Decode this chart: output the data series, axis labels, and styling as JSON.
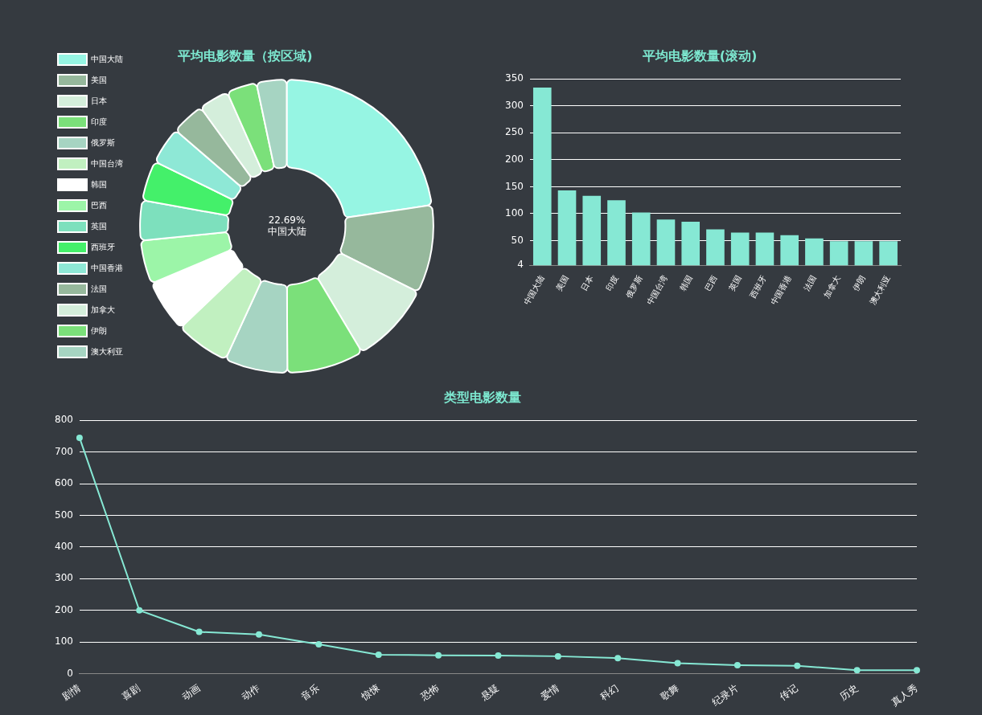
{
  "chart_data": [
    {
      "type": "donut",
      "title": "平均电影数量（按区域)",
      "legend": "left",
      "categories": [
        "中国大陆",
        "美国",
        "日本",
        "印度",
        "俄罗斯",
        "中国台湾",
        "韩国",
        "巴西",
        "英国",
        "西班牙",
        "中国香港",
        "法国",
        "加拿大",
        "伊朗",
        "澳大利亚"
      ],
      "values": [
        22.69,
        9.71,
        9.04,
        8.49,
        6.93,
        5.98,
        5.77,
        4.82,
        4.42,
        4.42,
        4.08,
        3.67,
        3.33,
        3.33,
        3.32
      ],
      "colors": [
        "#96f5e3",
        "#96b89c",
        "#d4eedb",
        "#7be07a",
        "#a6d4c2",
        "#c1f0c0",
        "#ffffff",
        "#9cf5a8",
        "#7de0bd",
        "#44f06a",
        "#8ee8d6",
        "#96b89c",
        "#d4eedb",
        "#7be07a",
        "#a6d4c2"
      ],
      "annotations": [
        "22.69%",
        "中国大陆"
      ]
    },
    {
      "type": "bar",
      "title": "平均电影数量(滚动)",
      "color": "#86e8d4",
      "grid": "y",
      "categories": [
        "中国大陆",
        "美国",
        "日本",
        "印度",
        "俄罗斯",
        "中国台湾",
        "韩国",
        "巴西",
        "英国",
        "西班牙",
        "中国香港",
        "法国",
        "加拿大",
        "伊朗",
        "澳大利亚"
      ],
      "values": [
        334,
        143,
        133,
        125,
        102,
        89,
        85,
        71,
        65,
        65,
        60,
        54,
        49,
        49,
        49
      ],
      "ylim": [
        4,
        350
      ],
      "yticks": [
        4,
        50,
        100,
        150,
        200,
        250,
        300,
        350
      ]
    },
    {
      "type": "line",
      "title": "类型电影数量",
      "color": "#86e8d4",
      "grid": "y",
      "marker": "circle",
      "categories": [
        "剧情",
        "喜剧",
        "动画",
        "动作",
        "音乐",
        "惊悚",
        "恐怖",
        "悬疑",
        "爱情",
        "科幻",
        "歌舞",
        "纪录片",
        "传记",
        "历史",
        "真人秀"
      ],
      "values": [
        745,
        200,
        132,
        124,
        93,
        60,
        58,
        57,
        55,
        49,
        33,
        27,
        25,
        11,
        11
      ],
      "ylim": [
        0,
        800
      ],
      "yticks": [
        0,
        100,
        200,
        300,
        400,
        500,
        600,
        700,
        800
      ]
    }
  ]
}
